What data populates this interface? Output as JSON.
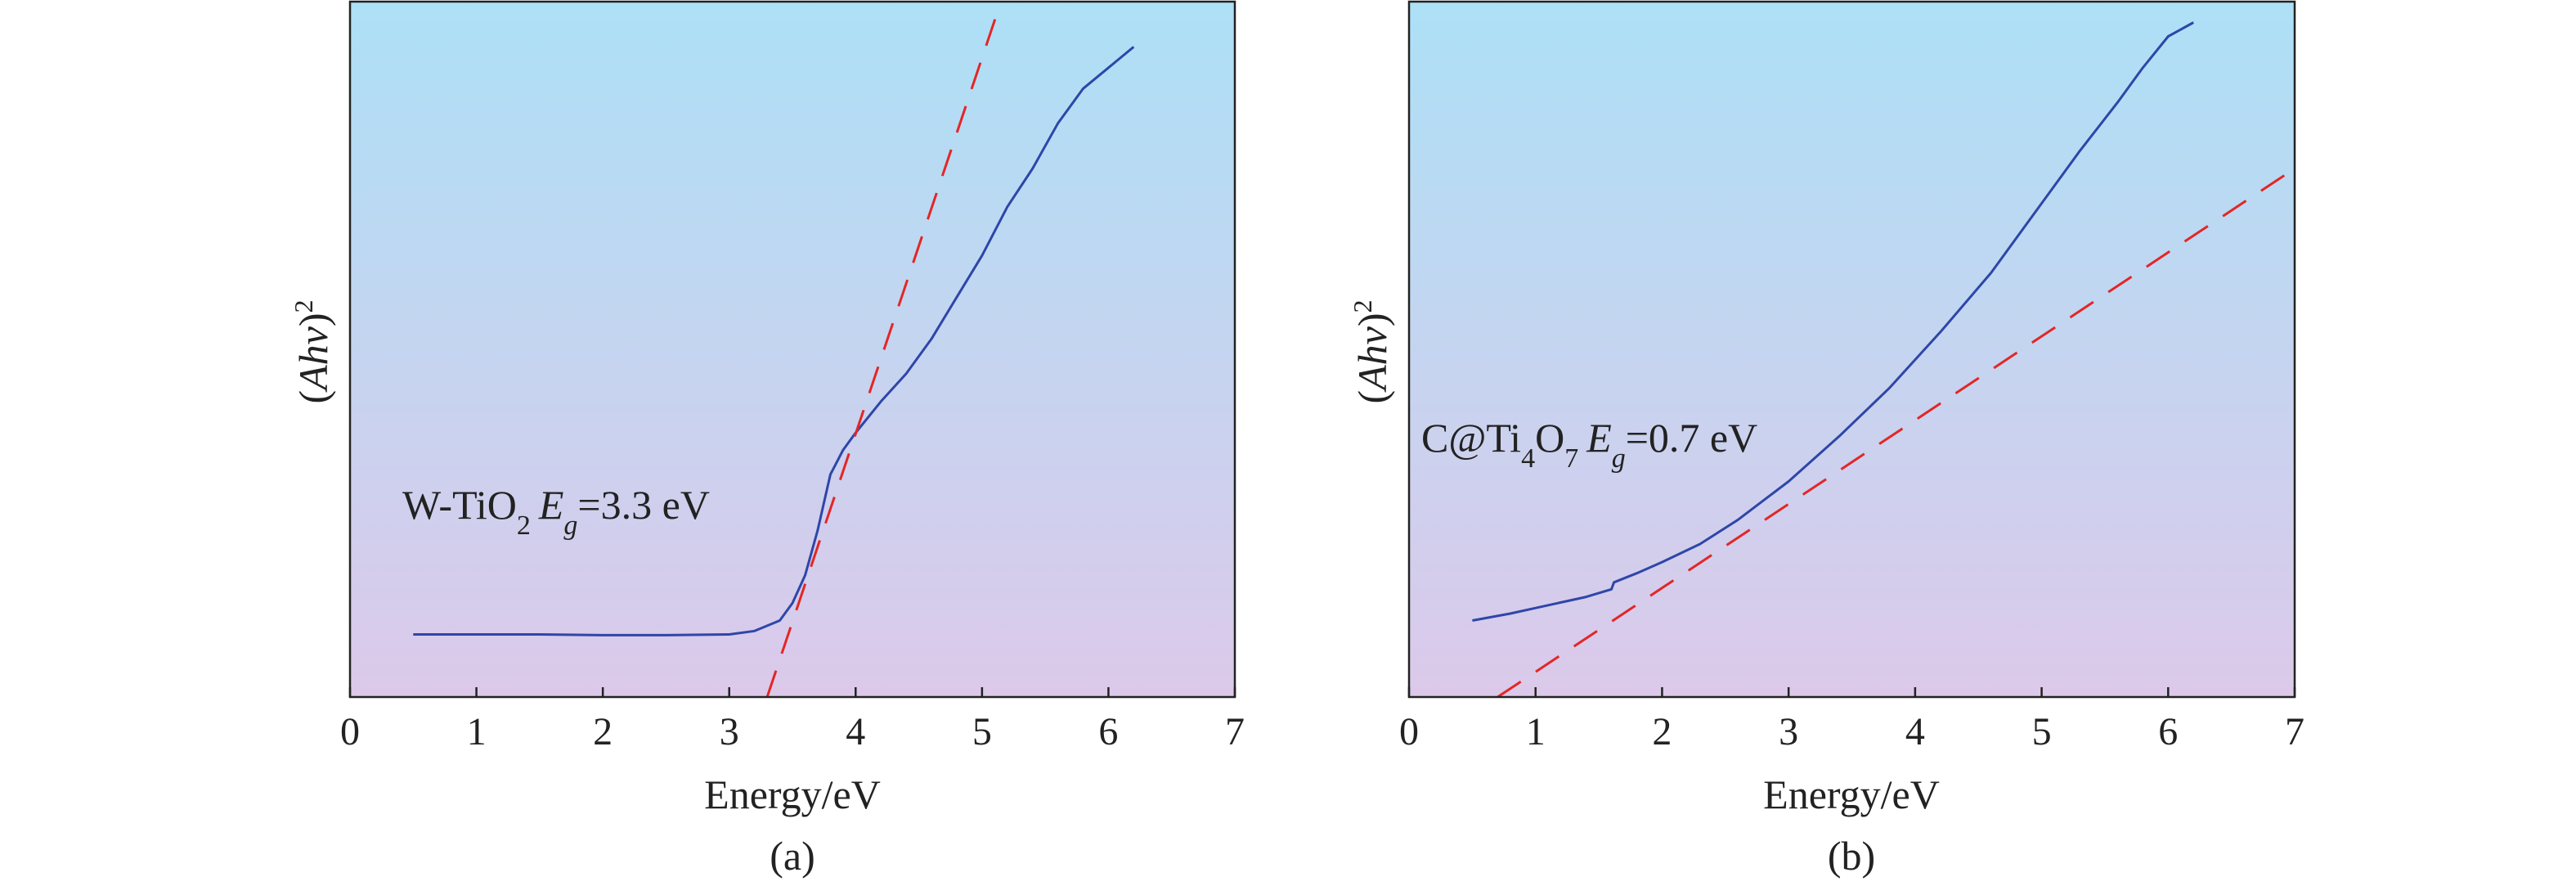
{
  "chart_data": [
    {
      "type": "line",
      "panel_label": "(a)",
      "xlabel": "Energy/eV",
      "ylabel": "(Ahv)²",
      "ylabel_parts": {
        "open": "(",
        "italic": "Ahv",
        "close": ")",
        "sup": "2"
      },
      "xlim": [
        0,
        7
      ],
      "ylim": [
        0,
        10
      ],
      "xticks": [
        "0",
        "1",
        "2",
        "3",
        "4",
        "5",
        "6",
        "7"
      ],
      "annotation": {
        "prefix": "W-TiO",
        "sub": "2",
        "italic": "E",
        "italic_sub": "g",
        "suffix": "=3.3 eV"
      },
      "colors": {
        "data": "#2e46a8",
        "fit": "#e32626",
        "bg_top": "#ade0f6",
        "bg_bottom": "#dcc9ea"
      },
      "series": [
        {
          "style": "solid",
          "x": [
            0.5,
            1.0,
            1.5,
            2.0,
            2.5,
            3.0,
            3.2,
            3.4,
            3.5,
            3.6,
            3.7,
            3.8,
            3.9,
            4.0,
            4.2,
            4.4,
            4.6,
            4.8,
            5.0,
            5.2,
            5.4,
            5.6,
            5.8,
            6.0,
            6.1,
            6.2
          ],
          "y": [
            0.9,
            0.9,
            0.9,
            0.89,
            0.89,
            0.9,
            0.95,
            1.1,
            1.35,
            1.75,
            2.4,
            3.2,
            3.55,
            3.8,
            4.25,
            4.65,
            5.15,
            5.75,
            6.35,
            7.05,
            7.6,
            8.25,
            8.75,
            9.05,
            9.2,
            9.35
          ]
        },
        {
          "style": "dashed",
          "x": [
            3.3,
            5.15
          ],
          "y": [
            0,
            10
          ]
        }
      ]
    },
    {
      "type": "line",
      "panel_label": "(b)",
      "xlabel": "Energy/eV",
      "ylabel": "(Ahv)²",
      "ylabel_parts": {
        "open": "(",
        "italic": "Ahv",
        "close": ")",
        "sup": "2"
      },
      "xlim": [
        0,
        7
      ],
      "ylim": [
        0,
        10
      ],
      "xticks": [
        "0",
        "1",
        "2",
        "3",
        "4",
        "5",
        "6",
        "7"
      ],
      "annotation": {
        "prefix": "C@Ti",
        "sub1": "4",
        "mid": "O",
        "sub2": "7",
        "italic": "E",
        "italic_sub": "g",
        "suffix": "=0.7 eV"
      },
      "colors": {
        "data": "#2e46a8",
        "fit": "#e32626",
        "bg_top": "#ade0f6",
        "bg_bottom": "#dcc9ea"
      },
      "series": [
        {
          "style": "solid",
          "x": [
            0.5,
            0.8,
            1.0,
            1.2,
            1.4,
            1.6,
            1.62,
            1.8,
            2.0,
            2.3,
            2.6,
            3.0,
            3.4,
            3.8,
            4.2,
            4.6,
            5.0,
            5.3,
            5.6,
            5.8,
            6.0,
            6.2
          ],
          "y": [
            1.1,
            1.2,
            1.28,
            1.36,
            1.44,
            1.55,
            1.65,
            1.78,
            1.94,
            2.2,
            2.55,
            3.1,
            3.75,
            4.45,
            5.25,
            6.1,
            7.1,
            7.85,
            8.55,
            9.05,
            9.5,
            9.7
          ]
        },
        {
          "style": "dashed",
          "x": [
            0.7,
            7.0
          ],
          "y": [
            0,
            7.6
          ]
        }
      ]
    }
  ]
}
